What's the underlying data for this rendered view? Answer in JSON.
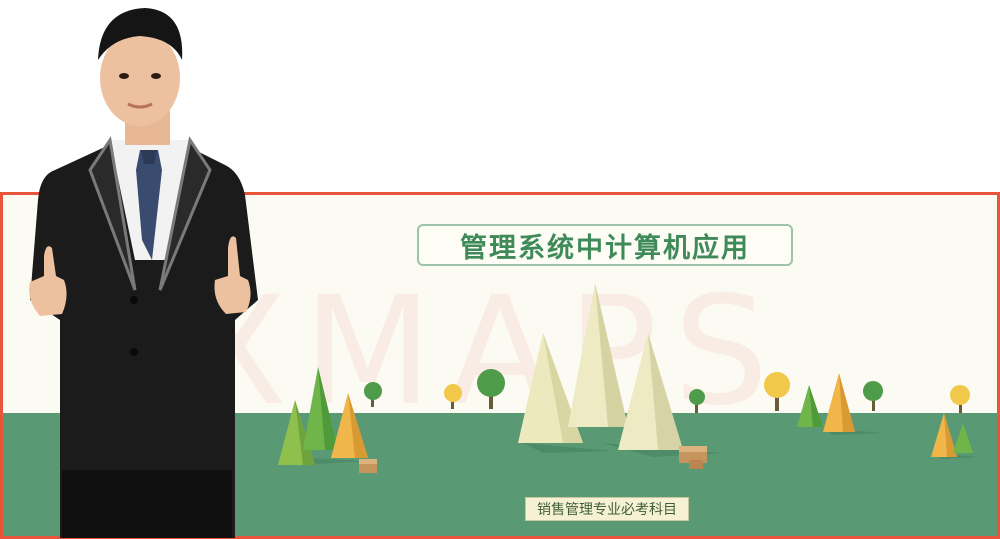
{
  "banner": {
    "title": "管理系统中计算机应用",
    "subtitle": "销售管理专业必考科目",
    "watermark": "SXMAPS"
  },
  "colors": {
    "border": "#e8553a",
    "ground": "#599a75",
    "title_text": "#3f8a59",
    "sky": "#fcfbf3"
  },
  "icons": {
    "person": "presenter-thumbs-up-photo",
    "scenery": "low-poly-mountains-and-trees"
  }
}
